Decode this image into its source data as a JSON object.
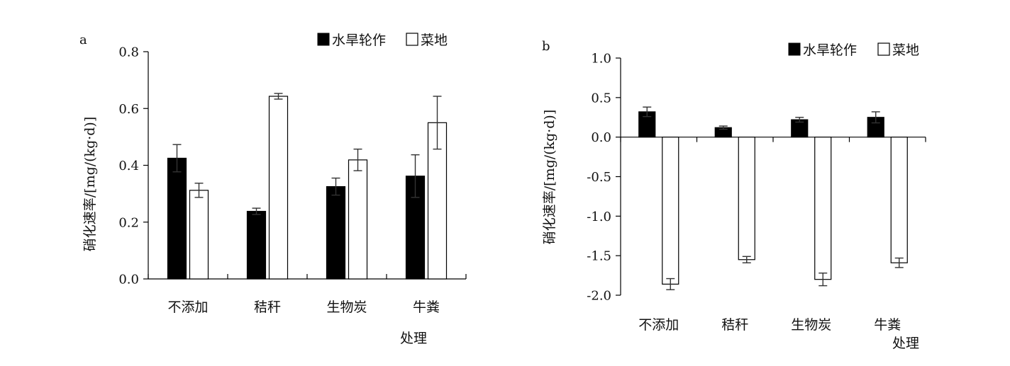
{
  "chart_data": [
    {
      "panel_label": "a",
      "type": "bar",
      "categories": [
        "不添加",
        "秸秆",
        "生物炭",
        "牛粪"
      ],
      "series": [
        {
          "name": "水旱轮作",
          "values": [
            0.425,
            0.238,
            0.325,
            0.362
          ],
          "errors": [
            0.048,
            0.011,
            0.03,
            0.075
          ],
          "color": "#000000"
        },
        {
          "name": "菜地",
          "values": [
            0.312,
            0.643,
            0.419,
            0.55
          ],
          "errors": [
            0.025,
            0.01,
            0.038,
            0.093
          ],
          "color": "#ffffff"
        }
      ],
      "xlabel": "处理",
      "ylabel": "硝化速率/[mg/(kg·d)]",
      "ylim": [
        0,
        0.8
      ],
      "yticks": [
        "0.0",
        "0.2",
        "0.4",
        "0.6",
        "0.8"
      ],
      "legend": "top-right",
      "grid": false
    },
    {
      "panel_label": "b",
      "type": "bar",
      "categories": [
        "不添加",
        "秸秆",
        "生物炭",
        "牛粪"
      ],
      "series": [
        {
          "name": "水旱轮作",
          "values": [
            0.32,
            0.12,
            0.22,
            0.25
          ],
          "errors": [
            0.06,
            0.02,
            0.03,
            0.07
          ],
          "color": "#000000"
        },
        {
          "name": "菜地",
          "values": [
            -1.86,
            -1.55,
            -1.8,
            -1.59
          ],
          "errors": [
            0.07,
            0.04,
            0.08,
            0.06
          ],
          "color": "#ffffff"
        }
      ],
      "xlabel": "处理",
      "ylabel": "硝化速率/[mg/(kg·d)]",
      "ylim": [
        -2.0,
        1.0
      ],
      "yticks": [
        "1.0",
        "0.5",
        "0.0",
        "-0.5",
        "-1.0",
        "-1.5",
        "-2.0"
      ],
      "legend": "top-right",
      "grid": false
    }
  ]
}
